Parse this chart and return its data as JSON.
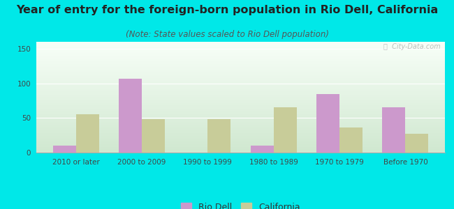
{
  "title": "Year of entry for the foreign-born population in Rio Dell, California",
  "subtitle": "(Note: State values scaled to Rio Dell population)",
  "categories": [
    "2010 or later",
    "2000 to 2009",
    "1990 to 1999",
    "1980 to 1989",
    "1970 to 1979",
    "Before 1970"
  ],
  "rio_dell": [
    10,
    107,
    0,
    10,
    85,
    65
  ],
  "california": [
    55,
    48,
    48,
    65,
    36,
    27
  ],
  "rio_dell_color": "#cc99cc",
  "california_color": "#c8cc99",
  "bar_width": 0.35,
  "ylim": [
    0,
    160
  ],
  "yticks": [
    0,
    50,
    100,
    150
  ],
  "background_color": "#00e8e8",
  "plot_bg_color_top": "#f8fff8",
  "plot_bg_color_bottom": "#d0e8d0",
  "title_fontsize": 11.5,
  "subtitle_fontsize": 8.5,
  "tick_fontsize": 7.5,
  "legend_fontsize": 9,
  "watermark": "ⓘ  City-Data.com"
}
